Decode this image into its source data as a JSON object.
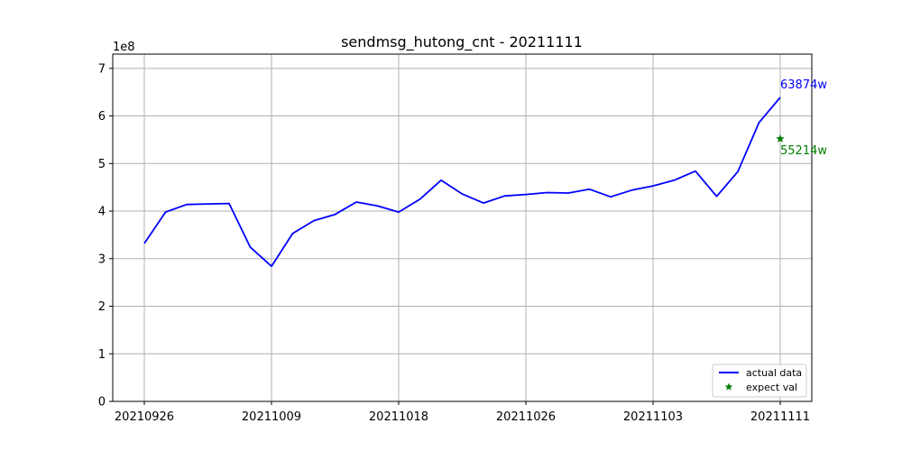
{
  "chart_data": {
    "type": "line",
    "title": "sendmsg_hutong_cnt - 20211111",
    "xlabel": "",
    "ylabel": "",
    "y_offset_label": "1e8",
    "ylim": [
      0,
      7.3
    ],
    "yticks": [
      0,
      1,
      2,
      3,
      4,
      5,
      6,
      7
    ],
    "x_tick_labels": [
      "20210926",
      "20211009",
      "20211018",
      "20211026",
      "20211103",
      "20211111"
    ],
    "x_tick_indices": [
      0,
      6,
      12,
      18,
      24,
      30
    ],
    "grid": true,
    "legend_position": "lower-right",
    "series": [
      {
        "name": "actual data",
        "color": "#0000ff",
        "values": [
          3.32,
          3.98,
          4.14,
          4.15,
          4.16,
          3.24,
          2.84,
          3.53,
          3.8,
          3.93,
          4.19,
          4.11,
          3.98,
          4.25,
          4.65,
          4.36,
          4.17,
          4.32,
          4.35,
          4.39,
          4.38,
          4.46,
          4.3,
          4.44,
          4.53,
          4.65,
          4.84,
          4.31,
          4.83,
          5.86,
          6.39
        ]
      }
    ],
    "expect": {
      "name": "expect val",
      "color": "#008000",
      "marker": "star",
      "index": 30,
      "value": 5.52
    },
    "annotations": {
      "actual_label": "63874w",
      "expect_label": "55214w"
    }
  }
}
